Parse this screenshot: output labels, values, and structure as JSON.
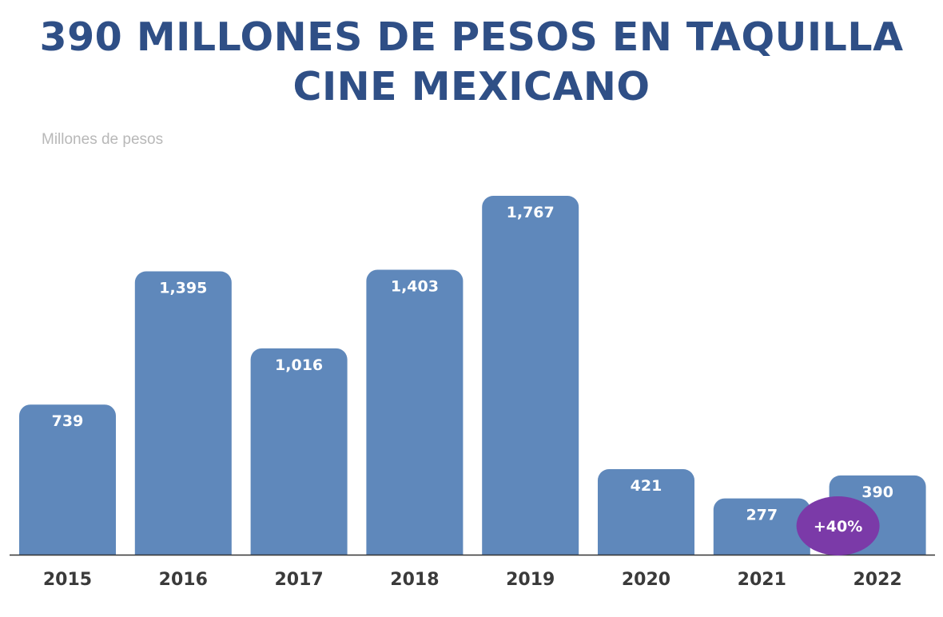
{
  "chart_data": {
    "type": "bar",
    "title_line1": "390 MILLONES DE PESOS EN TAQUILLA",
    "title_line2": "CINE MEXICANO",
    "ylabel": "Millones de pesos",
    "categories": [
      "2015",
      "2016",
      "2017",
      "2018",
      "2019",
      "2020",
      "2021",
      "2022"
    ],
    "values": [
      739,
      1395,
      1016,
      1403,
      1767,
      421,
      277,
      390
    ],
    "value_labels": [
      "739",
      "1,395",
      "1,016",
      "1,403",
      "1,767",
      "421",
      "277",
      "390"
    ],
    "annotation": {
      "text": "+40%",
      "category": "2022"
    },
    "colors": {
      "bar": "#5f88bb",
      "title": "#2f4f86",
      "badge": "#7b3aa8",
      "axis": "#333333"
    },
    "grid": false
  }
}
